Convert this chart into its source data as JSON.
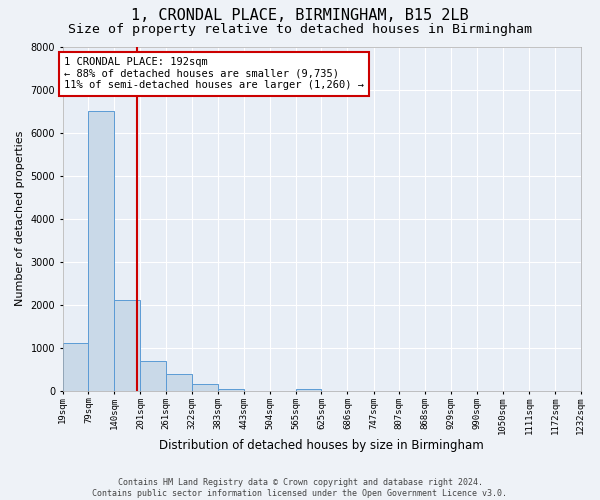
{
  "title": "1, CRONDAL PLACE, BIRMINGHAM, B15 2LB",
  "subtitle": "Size of property relative to detached houses in Birmingham",
  "xlabel": "Distribution of detached houses by size in Birmingham",
  "ylabel": "Number of detached properties",
  "footer1": "Contains HM Land Registry data © Crown copyright and database right 2024.",
  "footer2": "Contains public sector information licensed under the Open Government Licence v3.0.",
  "annotation_line1": "1 CRONDAL PLACE: 192sqm",
  "annotation_line2": "← 88% of detached houses are smaller (9,735)",
  "annotation_line3": "11% of semi-detached houses are larger (1,260) →",
  "property_size": 192,
  "bin_edges": [
    19,
    79,
    140,
    201,
    261,
    322,
    383,
    443,
    504,
    565,
    625,
    686,
    747,
    807,
    868,
    929,
    990,
    1050,
    1111,
    1172,
    1232
  ],
  "bar_heights": [
    1100,
    6500,
    2100,
    700,
    400,
    150,
    50,
    0,
    0,
    50,
    0,
    0,
    0,
    0,
    0,
    0,
    0,
    0,
    0,
    0
  ],
  "bar_color": "#c9d9e8",
  "bar_edge_color": "#5b9bd5",
  "vline_color": "#cc0000",
  "ylim": [
    0,
    8000
  ],
  "yticks": [
    0,
    1000,
    2000,
    3000,
    4000,
    5000,
    6000,
    7000,
    8000
  ],
  "tick_labels": [
    "19sqm",
    "79sqm",
    "140sqm",
    "201sqm",
    "261sqm",
    "322sqm",
    "383sqm",
    "443sqm",
    "504sqm",
    "565sqm",
    "625sqm",
    "686sqm",
    "747sqm",
    "807sqm",
    "868sqm",
    "929sqm",
    "990sqm",
    "1050sqm",
    "1111sqm",
    "1172sqm",
    "1232sqm"
  ],
  "background_color": "#eef2f7",
  "plot_bg_color": "#e8eef6",
  "grid_color": "#ffffff",
  "title_fontsize": 11,
  "subtitle_fontsize": 9.5,
  "axis_label_fontsize": 8,
  "tick_fontsize": 6.5,
  "annotation_fontsize": 7.5,
  "box_color": "#cc0000",
  "footer_fontsize": 6
}
